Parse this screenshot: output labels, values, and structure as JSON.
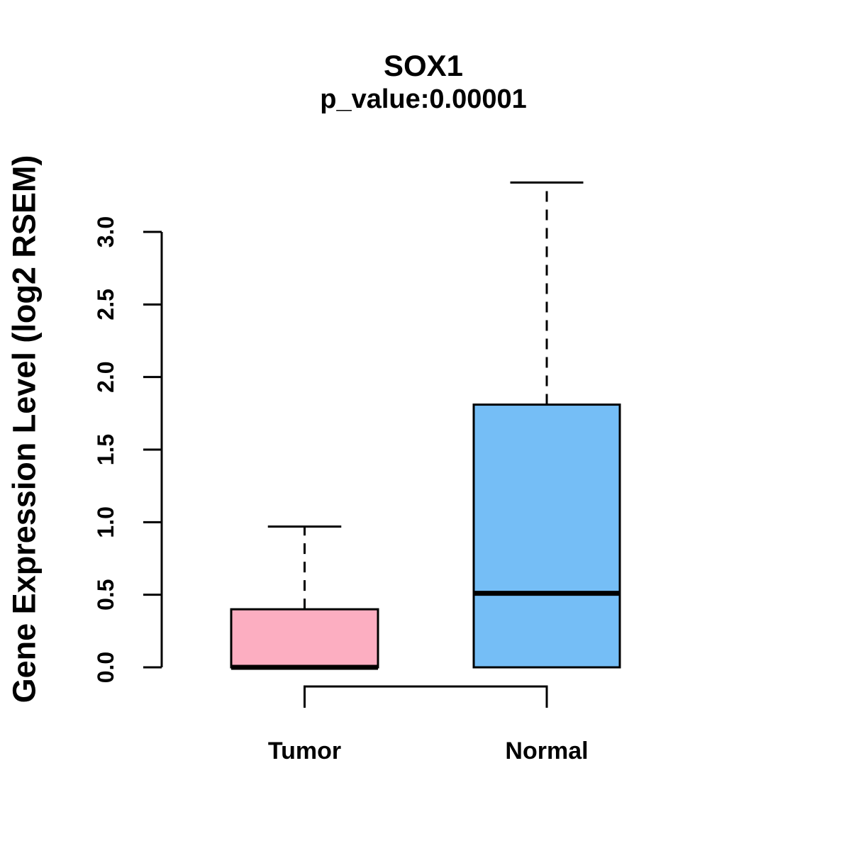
{
  "chart_data": {
    "type": "boxplot",
    "title": "SOX1",
    "subtitle": "p_value:0.00001",
    "ylabel": "Gene Expression Level (log2 RSEM)",
    "xlabel": "",
    "categories": [
      "Tumor",
      "Normal"
    ],
    "yticks": [
      "0.0",
      "0.5",
      "1.0",
      "1.5",
      "2.0",
      "2.5",
      "3.0"
    ],
    "ylim": [
      0,
      3
    ],
    "grid": false,
    "legend": "none",
    "series": [
      {
        "name": "Tumor",
        "color": "#FCAEC1",
        "whisker_low": 0.0,
        "q1": 0.0,
        "median": 0.0,
        "q3": 0.4,
        "whisker_high": 0.97
      },
      {
        "name": "Normal",
        "color": "#75BEF6",
        "whisker_low": 0.0,
        "q1": 0.0,
        "median": 0.51,
        "q3": 1.81,
        "whisker_high": 3.34
      }
    ],
    "comparison_bracket": {
      "between": [
        "Tumor",
        "Normal"
      ]
    }
  },
  "colors": {
    "background": "#FFFFFF",
    "line": "#000000",
    "tumor_fill": "#FCAEC1",
    "normal_fill": "#75BEF6"
  }
}
